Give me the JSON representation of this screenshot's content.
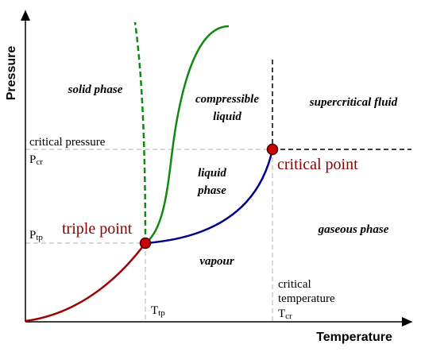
{
  "axes": {
    "y": "Pressure",
    "x": "Temperature"
  },
  "regions": {
    "solid": "solid phase",
    "compressible": [
      "compressible",
      "liquid"
    ],
    "supercritical": "supercritical fluid",
    "liquid": [
      "liquid",
      "phase"
    ],
    "gaseous": "gaseous phase",
    "vapour": "vapour"
  },
  "points": {
    "critical": "critical point",
    "triple": "triple point"
  },
  "pressure_labels": {
    "critical": "critical pressure",
    "p_cr": {
      "main": "P",
      "sub": "cr"
    },
    "p_tp": {
      "main": "P",
      "sub": "tp"
    }
  },
  "temperature_labels": {
    "critical": [
      "critical",
      "temperature"
    ],
    "t_cr": {
      "main": "T",
      "sub": "cr"
    },
    "t_tp": {
      "main": "T",
      "sub": "tp"
    }
  }
}
